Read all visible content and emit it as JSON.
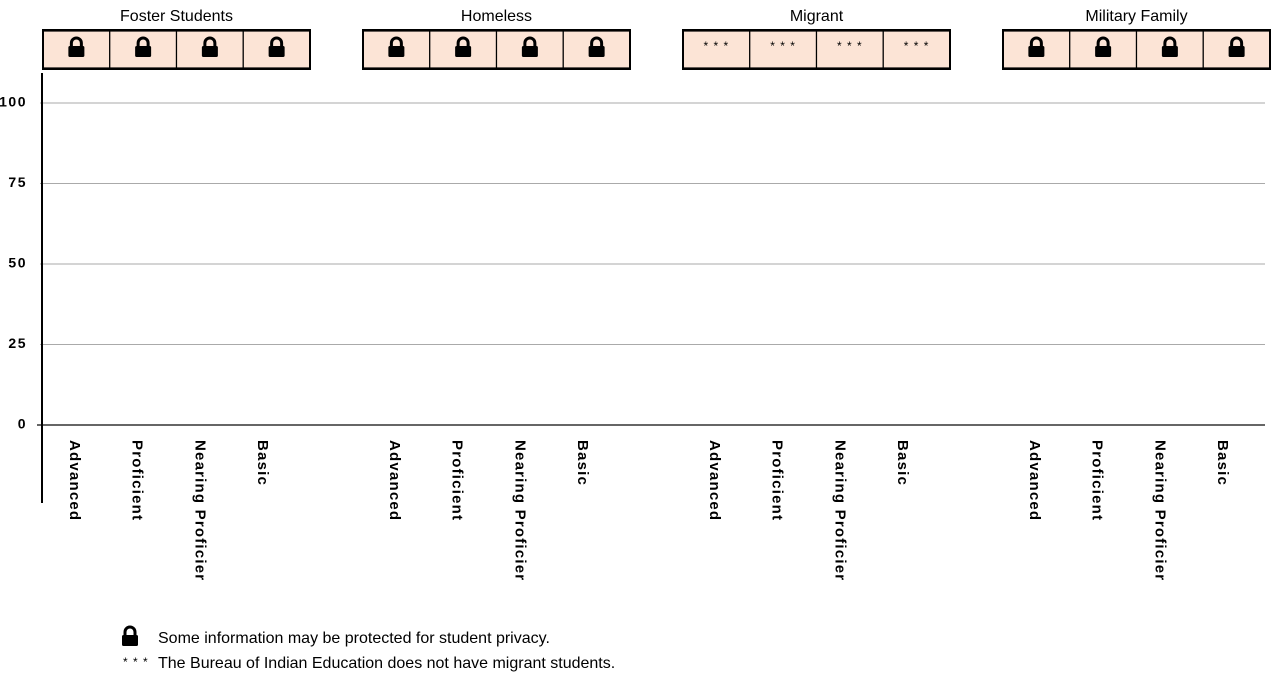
{
  "chart_data": {
    "type": "bar",
    "ylim": [
      0,
      100
    ],
    "yticks": [
      0,
      25,
      50,
      75,
      100
    ],
    "grid": true,
    "cell_color": "#fce4d6",
    "groups": [
      {
        "name": "Foster Students",
        "categories": [
          "Advanced",
          "Proficient",
          "Nearing Proficier",
          "Basic"
        ],
        "locked": true
      },
      {
        "name": "Homeless",
        "categories": [
          "Advanced",
          "Proficient",
          "Nearing Proficier",
          "Basic"
        ],
        "locked": true
      },
      {
        "name": "Migrant",
        "categories": [
          "Advanced",
          "Proficient",
          "Nearing Proficier",
          "Basic"
        ],
        "locked": false,
        "cell_text": [
          "* * *",
          "* * *",
          "* * *",
          "* * *"
        ]
      },
      {
        "name": "Military Family",
        "categories": [
          "Advanced",
          "Proficient",
          "Nearing Proficier",
          "Basic"
        ],
        "locked": true
      }
    ],
    "legend": {
      "lock_text": "Some information may be protected for student privacy.",
      "symbol": "* * *",
      "symbol_text": "The Bureau of Indian Education does not have migrant students."
    }
  }
}
